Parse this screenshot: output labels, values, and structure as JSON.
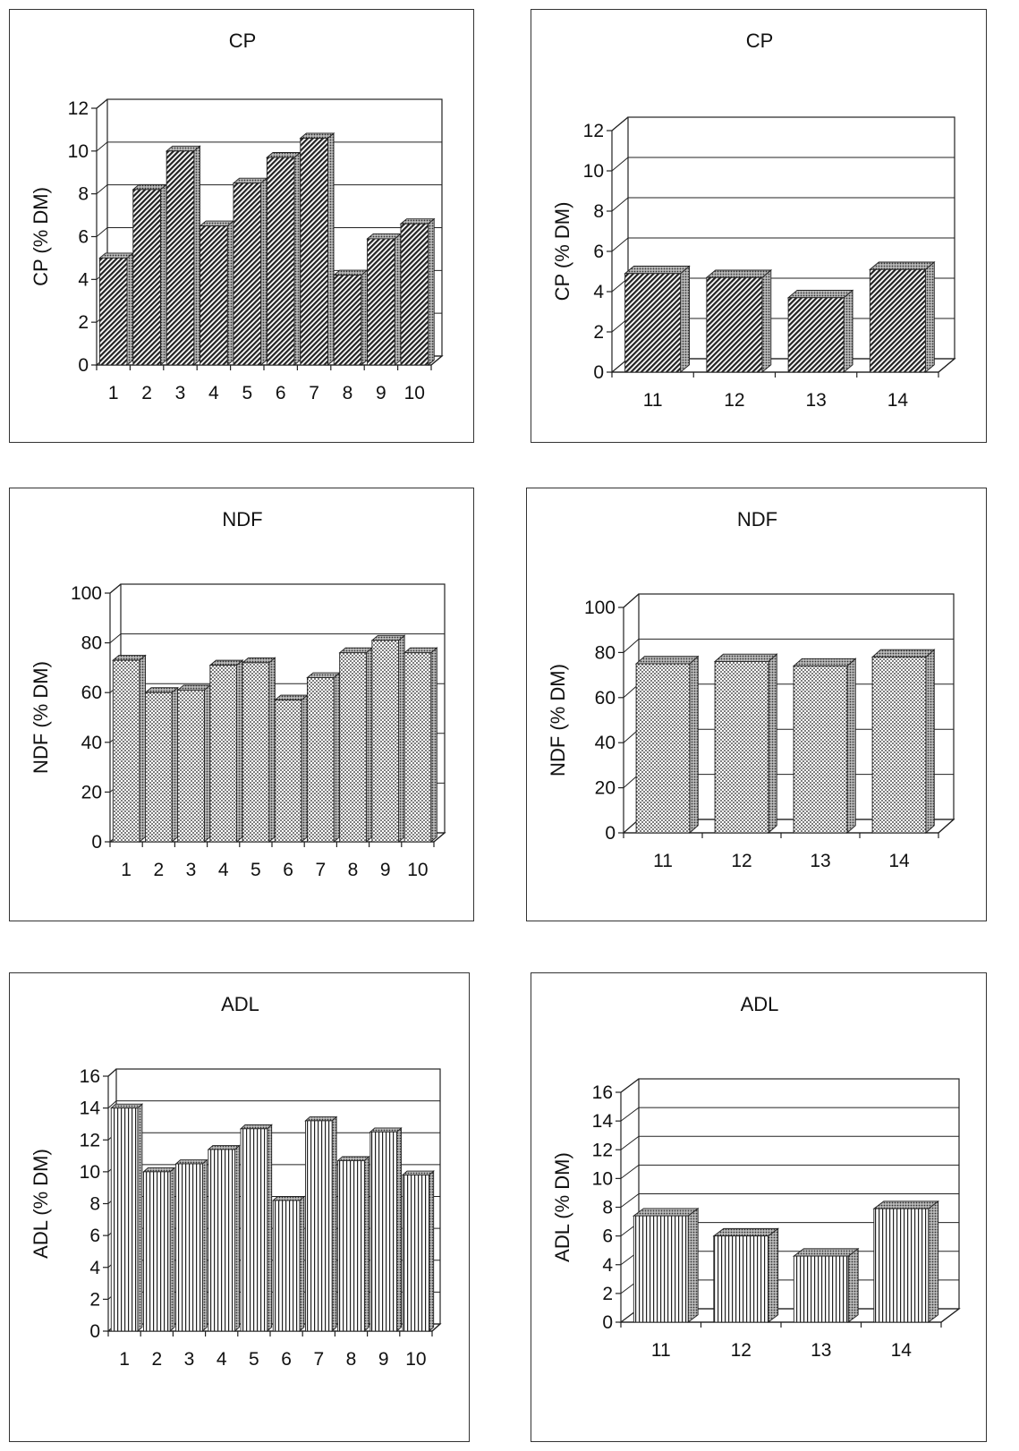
{
  "chart_data": [
    {
      "type": "bar",
      "title": "CP",
      "ylabel": "CP (% DM)",
      "categories": [
        "1",
        "2",
        "3",
        "4",
        "5",
        "6",
        "7",
        "8",
        "9",
        "10"
      ],
      "values": [
        5.0,
        8.2,
        10.0,
        6.5,
        8.5,
        9.7,
        10.6,
        4.2,
        5.9,
        6.6
      ],
      "ylim": [
        0,
        12
      ],
      "yticks": [
        0,
        2,
        4,
        6,
        8,
        10,
        12
      ],
      "grid": true,
      "pattern": "diagonal-hatch"
    },
    {
      "type": "bar",
      "title": "CP",
      "ylabel": "CP (% DM)",
      "categories": [
        "11",
        "12",
        "13",
        "14"
      ],
      "values": [
        4.9,
        4.7,
        3.7,
        5.1
      ],
      "ylim": [
        0,
        12
      ],
      "yticks": [
        0,
        2,
        4,
        6,
        8,
        10,
        12
      ],
      "grid": true,
      "pattern": "diagonal-hatch"
    },
    {
      "type": "bar",
      "title": "NDF",
      "ylabel": "NDF (% DM)",
      "categories": [
        "1",
        "2",
        "3",
        "4",
        "5",
        "6",
        "7",
        "8",
        "9",
        "10"
      ],
      "values": [
        73,
        60,
        61,
        71,
        72,
        57,
        66,
        76,
        81,
        76
      ],
      "ylim": [
        0,
        100
      ],
      "yticks": [
        0,
        20,
        40,
        60,
        80,
        100
      ],
      "grid": true,
      "pattern": "dots"
    },
    {
      "type": "bar",
      "title": "NDF",
      "ylabel": "NDF (% DM)",
      "categories": [
        "11",
        "12",
        "13",
        "14"
      ],
      "values": [
        75,
        76,
        74,
        78
      ],
      "ylim": [
        0,
        100
      ],
      "yticks": [
        0,
        20,
        40,
        60,
        80,
        100
      ],
      "grid": true,
      "pattern": "dots"
    },
    {
      "type": "bar",
      "title": "ADL",
      "ylabel": "ADL (% DM)",
      "categories": [
        "1",
        "2",
        "3",
        "4",
        "5",
        "6",
        "7",
        "8",
        "9",
        "10"
      ],
      "values": [
        14.0,
        10.0,
        10.5,
        11.4,
        12.7,
        8.2,
        13.2,
        10.7,
        12.5,
        9.8
      ],
      "ylim": [
        0,
        16
      ],
      "yticks": [
        0,
        2,
        4,
        6,
        8,
        10,
        12,
        14,
        16
      ],
      "grid": true,
      "pattern": "vertical-stripes"
    },
    {
      "type": "bar",
      "title": "ADL",
      "ylabel": "ADL (% DM)",
      "categories": [
        "11",
        "12",
        "13",
        "14"
      ],
      "values": [
        7.4,
        6.0,
        4.6,
        7.9
      ],
      "ylim": [
        0,
        16
      ],
      "yticks": [
        0,
        2,
        4,
        6,
        8,
        10,
        12,
        14,
        16
      ],
      "grid": true,
      "pattern": "vertical-stripes"
    }
  ],
  "colors": {
    "frame": "#333333",
    "bar_fill": "#ffffff",
    "bar_ink": "#222222"
  }
}
